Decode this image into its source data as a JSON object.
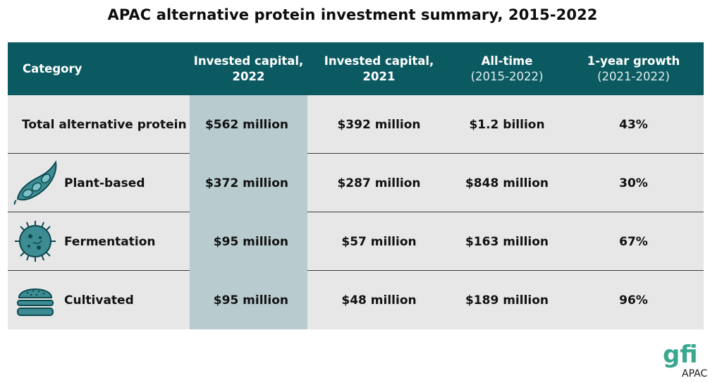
{
  "title": "APAC alternative protein investment summary, 2015-2022",
  "header": {
    "category": "Category",
    "col2": [
      "Invested capital,",
      "2022"
    ],
    "col3": [
      "Invested capital,",
      "2021"
    ],
    "col4": [
      "All-time",
      "(2015-2022)"
    ],
    "col5": [
      "1-year growth",
      "(2021-2022)"
    ]
  },
  "rows": [
    {
      "label": "Total alternative protein",
      "icon": "",
      "v2022": "$562 million",
      "v2021": "$392 million",
      "alltime": "$1.2 billion",
      "growth": "43%"
    },
    {
      "label": "Plant-based",
      "icon": "soybean-pod-icon",
      "v2022": "$372 million",
      "v2021": "$287 million",
      "alltime": "$848 million",
      "growth": "30%"
    },
    {
      "label": "Fermentation",
      "icon": "microbe-icon",
      "v2022": "$95 million",
      "v2021": "$57 million",
      "alltime": "$163 million",
      "growth": "67%"
    },
    {
      "label": "Cultivated",
      "icon": "burger-icon",
      "v2022": "$95 million",
      "v2021": "$48 million",
      "alltime": "$189 million",
      "growth": "96%"
    }
  ],
  "logo": {
    "mark": "gfi",
    "region": "APAC"
  },
  "colors": {
    "header_bg": "#0c5a61",
    "highlight": "#b8cbce",
    "row_bg": "#e7e7e8",
    "icon_fill": "#3e8c93"
  }
}
